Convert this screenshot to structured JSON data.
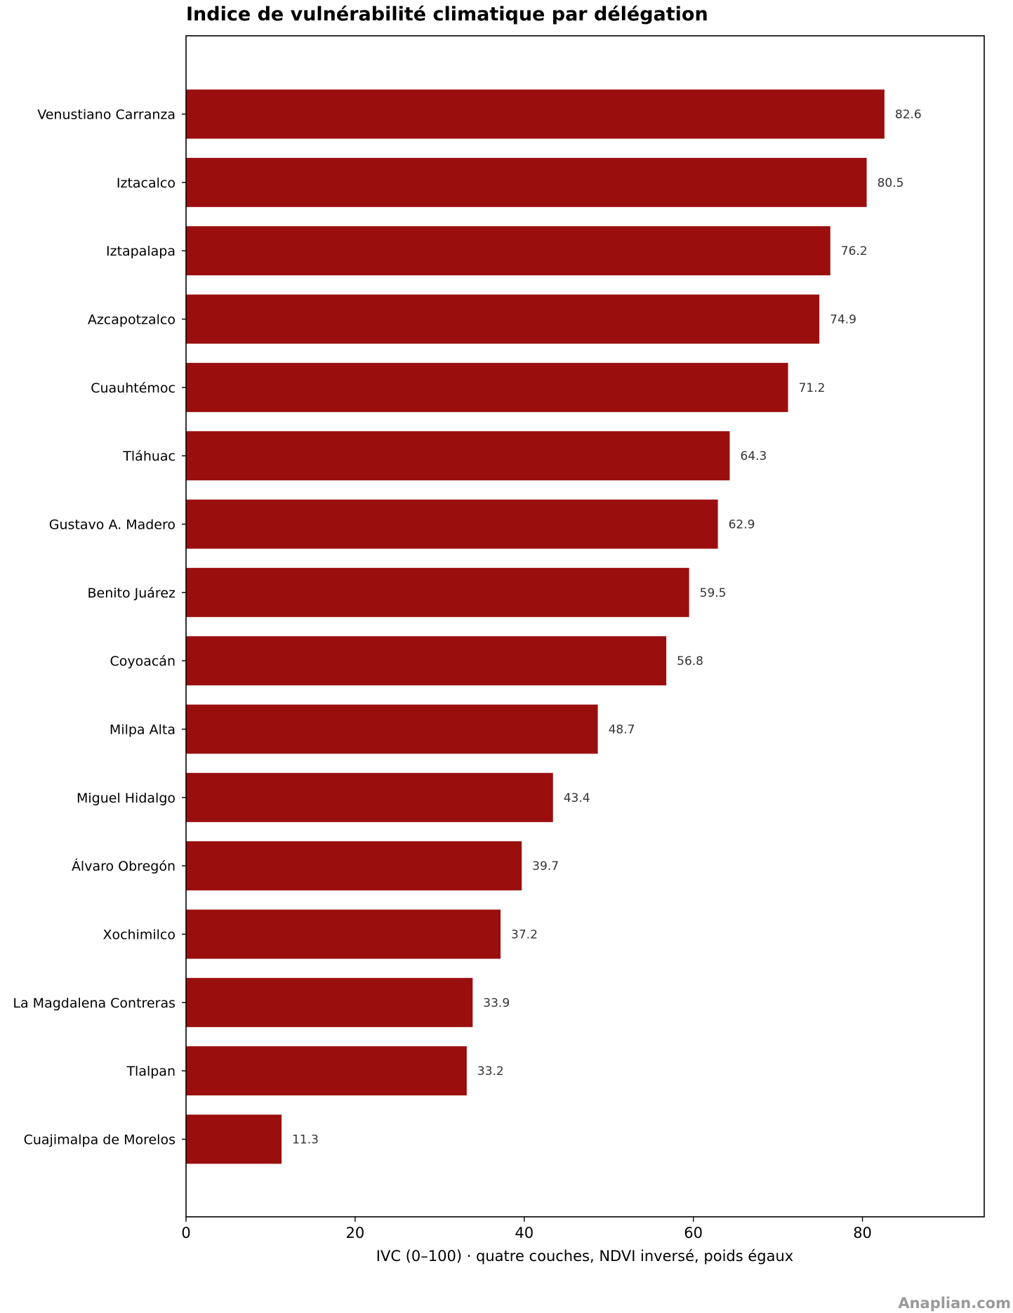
{
  "chart_data": {
    "type": "bar",
    "orientation": "horizontal",
    "title": "Indice de vulnérabilité climatique par délégation",
    "xlabel": "IVC (0–100) · quatre couches, NDVI inversé, poids égaux",
    "ylabel": "",
    "xlim": [
      0,
      94.4
    ],
    "xticks": [
      0,
      20,
      40,
      60,
      80
    ],
    "grid": false,
    "bar_color": "#9b0e0e",
    "categories": [
      "Venustiano Carranza",
      "Iztacalco",
      "Iztapalapa",
      "Azcapotzalco",
      "Cuauhtémoc",
      "Tláhuac",
      "Gustavo A. Madero",
      "Benito Juárez",
      "Coyoacán",
      "Milpa Alta",
      "Miguel Hidalgo",
      "Álvaro Obregón",
      "Xochimilco",
      "La Magdalena Contreras",
      "Tlalpan",
      "Cuajimalpa de Morelos"
    ],
    "values": [
      82.6,
      80.5,
      76.2,
      74.9,
      71.2,
      64.3,
      62.9,
      59.5,
      56.8,
      48.7,
      43.4,
      39.7,
      37.2,
      33.9,
      33.2,
      11.3
    ],
    "data_labels": [
      "82.6",
      "80.5",
      "76.2",
      "74.9",
      "71.2",
      "64.3",
      "62.9",
      "59.5",
      "56.8",
      "48.7",
      "43.4",
      "39.7",
      "37.2",
      "33.9",
      "33.2",
      "11.3"
    ]
  },
  "watermark": "Anaplian.com"
}
